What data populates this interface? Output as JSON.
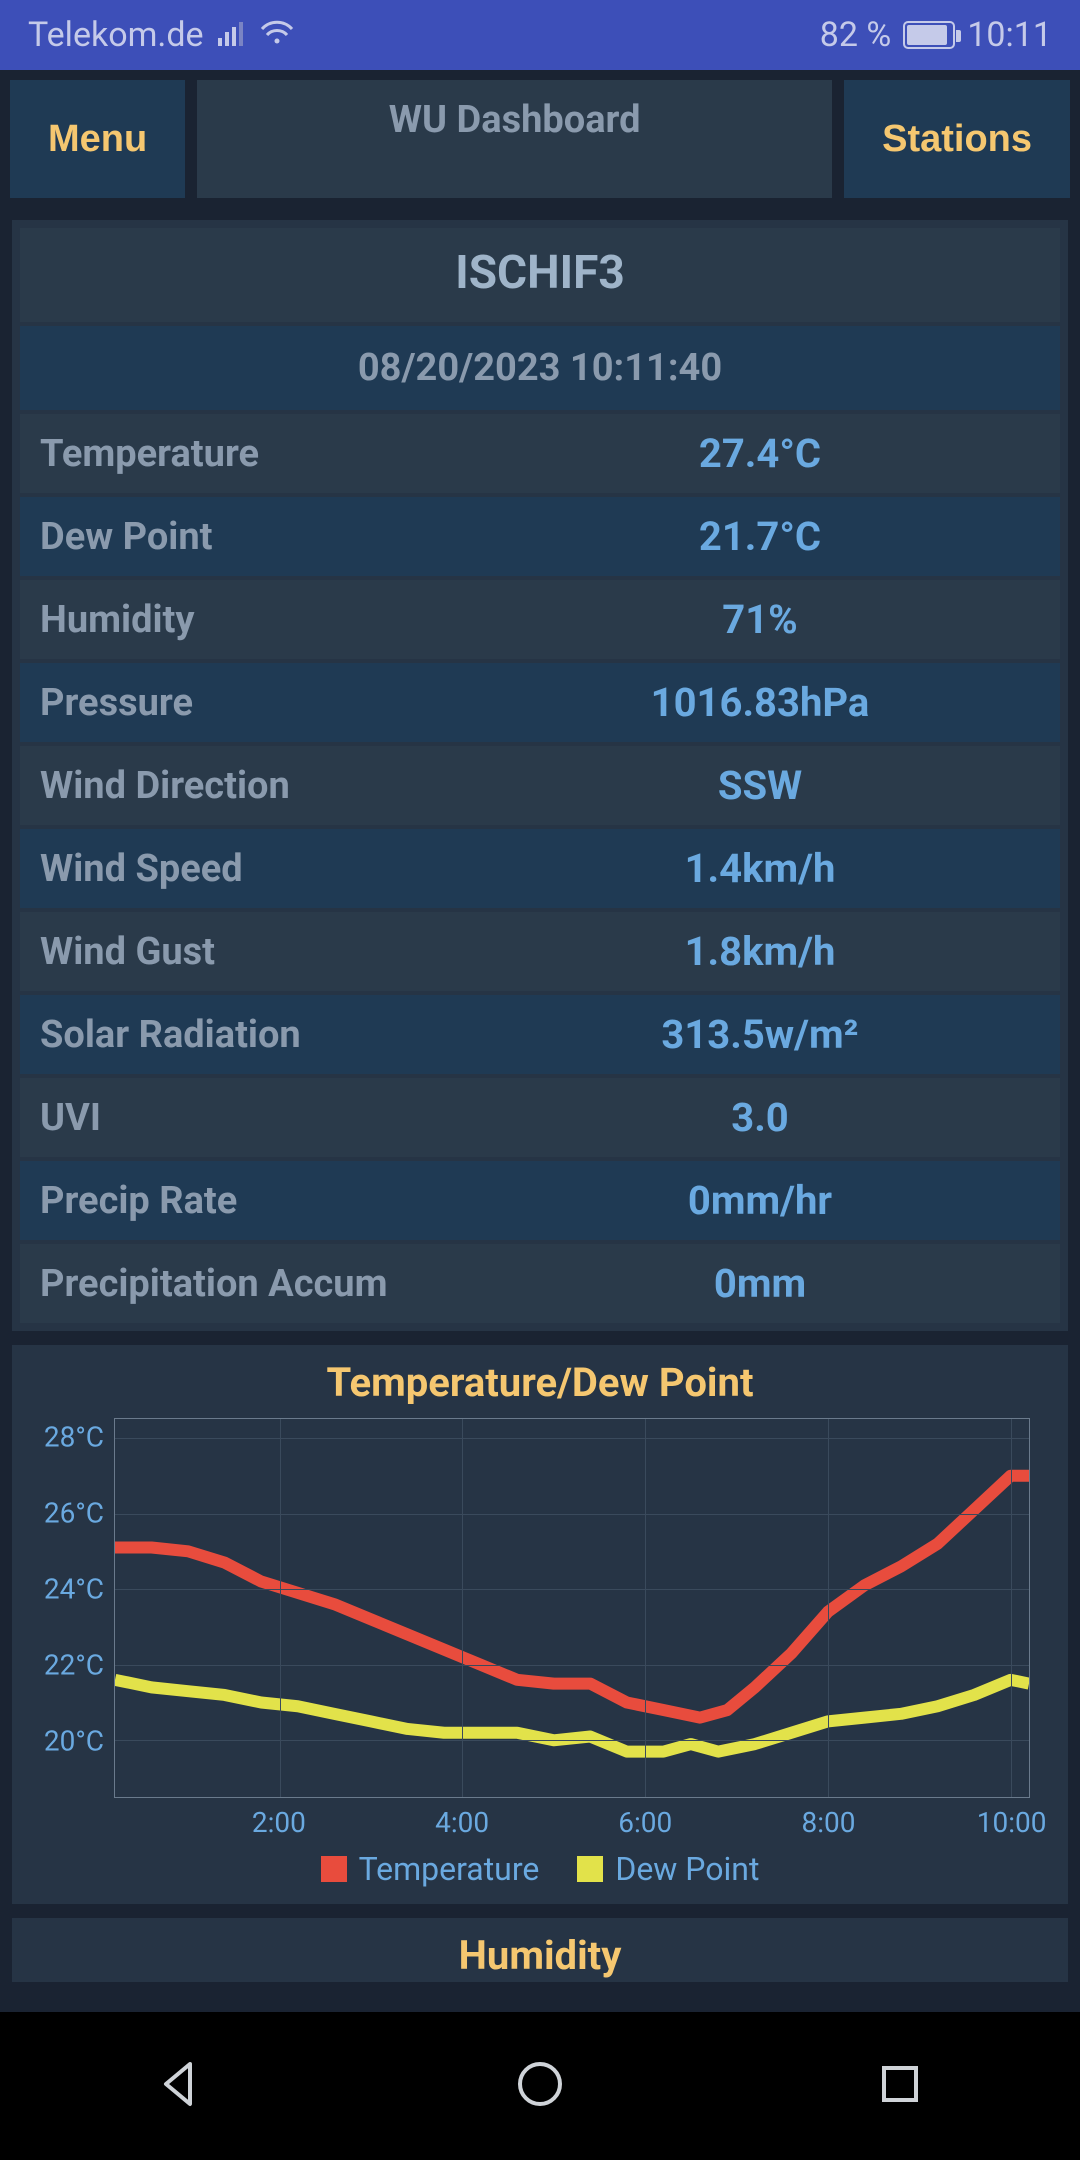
{
  "status": {
    "carrier": "Telekom.de",
    "battery_pct": "82 %",
    "time": "10:11",
    "battery_fill_pct": 82
  },
  "toolbar": {
    "menu": "Menu",
    "title": "WU Dashboard",
    "stations": "Stations"
  },
  "station": {
    "id": "ISCHIF3",
    "timestamp": "08/20/2023 10:11:40"
  },
  "rows": [
    {
      "label": "Temperature",
      "value": "27.4°C"
    },
    {
      "label": "Dew Point",
      "value": "21.7°C"
    },
    {
      "label": "Humidity",
      "value": "71%"
    },
    {
      "label": "Pressure",
      "value": "1016.83hPa"
    },
    {
      "label": "Wind Direction",
      "value": "SSW"
    },
    {
      "label": "Wind Speed",
      "value": "1.4km/h"
    },
    {
      "label": "Wind Gust",
      "value": "1.8km/h"
    },
    {
      "label": "Solar Radiation",
      "value": "313.5w/m²"
    },
    {
      "label": "UVI",
      "value": "3.0"
    },
    {
      "label": "Precip Rate",
      "value": "0mm/hr"
    },
    {
      "label": "Precipitation Accum",
      "value": "0mm"
    }
  ],
  "chart": {
    "title": "Temperature/Dew Point",
    "type": "line",
    "y_unit": "°C",
    "ylim": [
      18.5,
      28.5
    ],
    "yticks": [
      20,
      22,
      24,
      26,
      28
    ],
    "xlim_hours": [
      0.2,
      10.2
    ],
    "xticks": [
      2,
      4,
      6,
      8,
      10
    ],
    "xtick_labels": [
      "2:00",
      "4:00",
      "6:00",
      "8:00",
      "10:00"
    ],
    "grid_color": "#3a4a5c",
    "border_color": "#6a7a8c",
    "background_color": "#263445",
    "axis_label_color": "#6aa9e0",
    "axis_fontsize": 28,
    "title_color": "#f5c770",
    "title_fontsize": 40,
    "line_width": 4,
    "series": [
      {
        "name": "Temperature",
        "color": "#e84c3d",
        "points": [
          [
            0.2,
            25.1
          ],
          [
            0.6,
            25.1
          ],
          [
            1.0,
            25.0
          ],
          [
            1.4,
            24.7
          ],
          [
            1.8,
            24.2
          ],
          [
            2.2,
            23.9
          ],
          [
            2.6,
            23.6
          ],
          [
            3.0,
            23.2
          ],
          [
            3.4,
            22.8
          ],
          [
            3.8,
            22.4
          ],
          [
            4.2,
            22.0
          ],
          [
            4.6,
            21.6
          ],
          [
            5.0,
            21.5
          ],
          [
            5.4,
            21.5
          ],
          [
            5.8,
            21.0
          ],
          [
            6.2,
            20.8
          ],
          [
            6.6,
            20.6
          ],
          [
            6.9,
            20.8
          ],
          [
            7.2,
            21.4
          ],
          [
            7.6,
            22.3
          ],
          [
            8.0,
            23.4
          ],
          [
            8.4,
            24.1
          ],
          [
            8.8,
            24.6
          ],
          [
            9.2,
            25.2
          ],
          [
            9.6,
            26.1
          ],
          [
            10.0,
            27.0
          ],
          [
            10.2,
            27.0
          ]
        ]
      },
      {
        "name": "Dew Point",
        "color": "#e2e24a",
        "points": [
          [
            0.2,
            21.6
          ],
          [
            0.6,
            21.4
          ],
          [
            1.0,
            21.3
          ],
          [
            1.4,
            21.2
          ],
          [
            1.8,
            21.0
          ],
          [
            2.2,
            20.9
          ],
          [
            2.6,
            20.7
          ],
          [
            3.0,
            20.5
          ],
          [
            3.4,
            20.3
          ],
          [
            3.8,
            20.2
          ],
          [
            4.2,
            20.2
          ],
          [
            4.6,
            20.2
          ],
          [
            5.0,
            20.0
          ],
          [
            5.4,
            20.1
          ],
          [
            5.8,
            19.7
          ],
          [
            6.2,
            19.7
          ],
          [
            6.5,
            19.9
          ],
          [
            6.8,
            19.7
          ],
          [
            7.2,
            19.9
          ],
          [
            7.6,
            20.2
          ],
          [
            8.0,
            20.5
          ],
          [
            8.4,
            20.6
          ],
          [
            8.8,
            20.7
          ],
          [
            9.2,
            20.9
          ],
          [
            9.6,
            21.2
          ],
          [
            10.0,
            21.6
          ],
          [
            10.2,
            21.5
          ]
        ]
      }
    ],
    "legend": [
      {
        "label": "Temperature",
        "color": "#e84c3d"
      },
      {
        "label": "Dew Point",
        "color": "#e2e24a"
      }
    ]
  },
  "chart2_title": "Humidity",
  "colors": {
    "accent_yellow": "#f5c770",
    "value_blue": "#6aa9e0",
    "label_grey": "#8a9aad",
    "row_a": "#2a3a4a",
    "row_b": "#1f3a54",
    "panel_bg": "#263445",
    "app_bg": "#1a2332",
    "status_bg": "#3d4fb8"
  }
}
